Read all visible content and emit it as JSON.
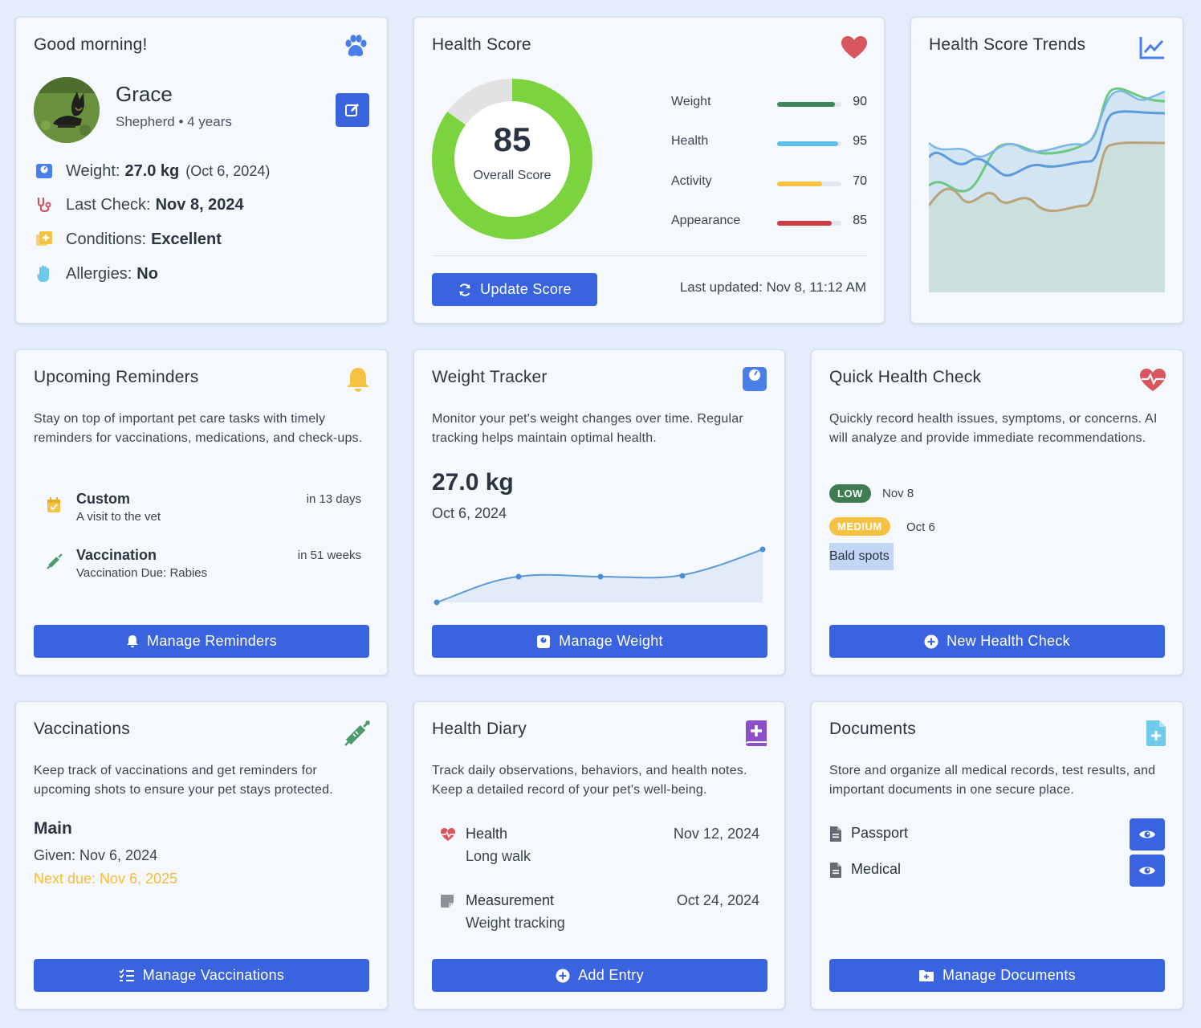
{
  "profile": {
    "greeting": "Good morning!",
    "name": "Grace",
    "breed_age": "Shepherd • 4 years",
    "weight_label": "Weight:",
    "weight_value": "27.0 kg",
    "weight_date": "(Oct 6, 2024)",
    "check_label": "Last Check:",
    "check_value": "Nov 8, 2024",
    "conditions_label": "Conditions:",
    "conditions_value": "Excellent",
    "allergies_label": "Allergies:",
    "allergies_value": "No"
  },
  "health_score": {
    "title": "Health Score",
    "score": "85",
    "score_fraction": 0.85,
    "score_caption": "Overall Score",
    "bars": [
      {
        "label": "Weight",
        "value": "90",
        "fraction": 0.9,
        "color": "#3d8456"
      },
      {
        "label": "Health",
        "value": "95",
        "fraction": 0.95,
        "color": "#5bc0e8"
      },
      {
        "label": "Activity",
        "value": "70",
        "fraction": 0.7,
        "color": "#f6c244"
      },
      {
        "label": "Appearance",
        "value": "85",
        "fraction": 0.85,
        "color": "#cc3d44"
      }
    ],
    "update_button": "Update Score",
    "last_updated": "Last updated: Nov 8, 11:12 AM",
    "ring_color": "#7bd43e"
  },
  "trends": {
    "title": "Health Score Trends"
  },
  "reminders": {
    "title": "Upcoming Reminders",
    "description": "Stay on top of important pet care tasks with timely reminders for vaccinations, medications, and check-ups.",
    "items": [
      {
        "title": "Custom",
        "subtitle": "A visit to the vet",
        "when": "in 13 days",
        "icon": "calendar-check-icon"
      },
      {
        "title": "Vaccination",
        "subtitle": "Vaccination Due: Rabies",
        "when": "in 51 weeks",
        "icon": "syringe-icon"
      }
    ],
    "button": "Manage Reminders"
  },
  "weight": {
    "title": "Weight Tracker",
    "description": "Monitor your pet's weight changes over time. Regular tracking helps maintain optimal health.",
    "value": "27.0 kg",
    "date": "Oct 6, 2024",
    "button": "Manage Weight"
  },
  "quick_check": {
    "title": "Quick Health Check",
    "description": "Quickly record health issues, symptoms, or concerns. AI will analyze and provide immediate recommendations.",
    "entries": [
      {
        "severity": "LOW",
        "date": "Nov 8",
        "color": "#3d7d51"
      },
      {
        "severity": "MEDIUM",
        "date": "Oct 6",
        "color": "#f6c244"
      }
    ],
    "highlight": "Bald spots",
    "button": "New Health Check"
  },
  "vaccinations": {
    "title": "Vaccinations",
    "description": "Keep track of vaccinations and get reminders for upcoming shots to ensure your pet stays protected.",
    "name": "Main",
    "given": "Given: Nov 6, 2024",
    "next_due": "Next due: Nov 6, 2025",
    "button": "Manage Vaccinations"
  },
  "diary": {
    "title": "Health Diary",
    "description": "Track daily observations, behaviors, and health notes. Keep a detailed record of your pet's well-being.",
    "entries": [
      {
        "title": "Health",
        "subtitle": "Long walk",
        "date": "Nov 12, 2024"
      },
      {
        "title": "Measurement",
        "subtitle": "Weight tracking",
        "date": "Oct 24, 2024"
      }
    ],
    "button": "Add Entry"
  },
  "documents": {
    "title": "Documents",
    "description": "Store and organize all medical records, test results, and important documents in one secure place.",
    "items": [
      {
        "label": "Passport"
      },
      {
        "label": "Medical"
      }
    ],
    "button": "Manage Documents"
  }
}
